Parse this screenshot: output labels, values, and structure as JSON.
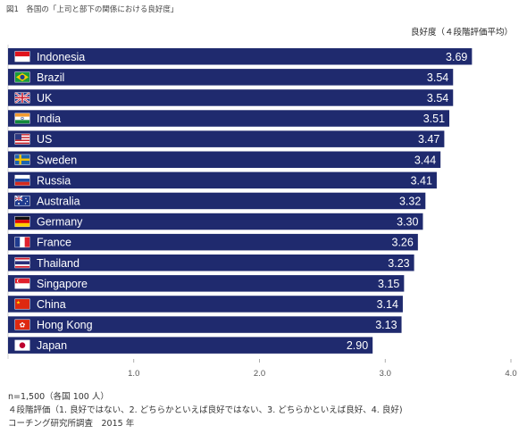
{
  "figure_title": "図1　各国の「上司と部下の関係における良好度」",
  "unit_label": "良好度（４段階評価平均）",
  "notes": [
    "n=1,500（各国 100 人）",
    "４段階評価（1. 良好ではない、2. どちらかといえば良好ではない、3. どちらかといえば良好、4. 良好)",
    "コーチング研究所調査　2015 年"
  ],
  "colors": {
    "bar": "#1f2a6e",
    "label_text": "#ffffff",
    "axis_text": "#555555"
  },
  "chart_data": {
    "type": "bar",
    "orientation": "horizontal",
    "categories": [
      "Indonesia",
      "Brazil",
      "UK",
      "India",
      "US",
      "Sweden",
      "Russia",
      "Australia",
      "Germany",
      "France",
      "Thailand",
      "Singapore",
      "China",
      "Hong Kong",
      "Japan"
    ],
    "values": [
      3.69,
      3.54,
      3.54,
      3.51,
      3.47,
      3.44,
      3.41,
      3.32,
      3.3,
      3.26,
      3.23,
      3.15,
      3.14,
      3.13,
      2.9
    ],
    "value_labels": [
      "3.69",
      "3.54",
      "3.54",
      "3.51",
      "3.47",
      "3.44",
      "3.41",
      "3.32",
      "3.30",
      "3.26",
      "3.23",
      "3.15",
      "3.14",
      "3.13",
      "2.90"
    ],
    "flag_icons": [
      "indonesia-flag-icon",
      "brazil-flag-icon",
      "uk-flag-icon",
      "india-flag-icon",
      "us-flag-icon",
      "sweden-flag-icon",
      "russia-flag-icon",
      "australia-flag-icon",
      "germany-flag-icon",
      "france-flag-icon",
      "thailand-flag-icon",
      "singapore-flag-icon",
      "china-flag-icon",
      "hong-kong-flag-icon",
      "japan-flag-icon"
    ],
    "x_ticks": [
      1.0,
      2.0,
      3.0,
      4.0
    ],
    "x_tick_labels": [
      "1.0",
      "2.0",
      "3.0",
      "4.0"
    ],
    "xlim": [
      0,
      4.0
    ],
    "title": "",
    "xlabel": "",
    "ylabel": "",
    "grid": false
  }
}
